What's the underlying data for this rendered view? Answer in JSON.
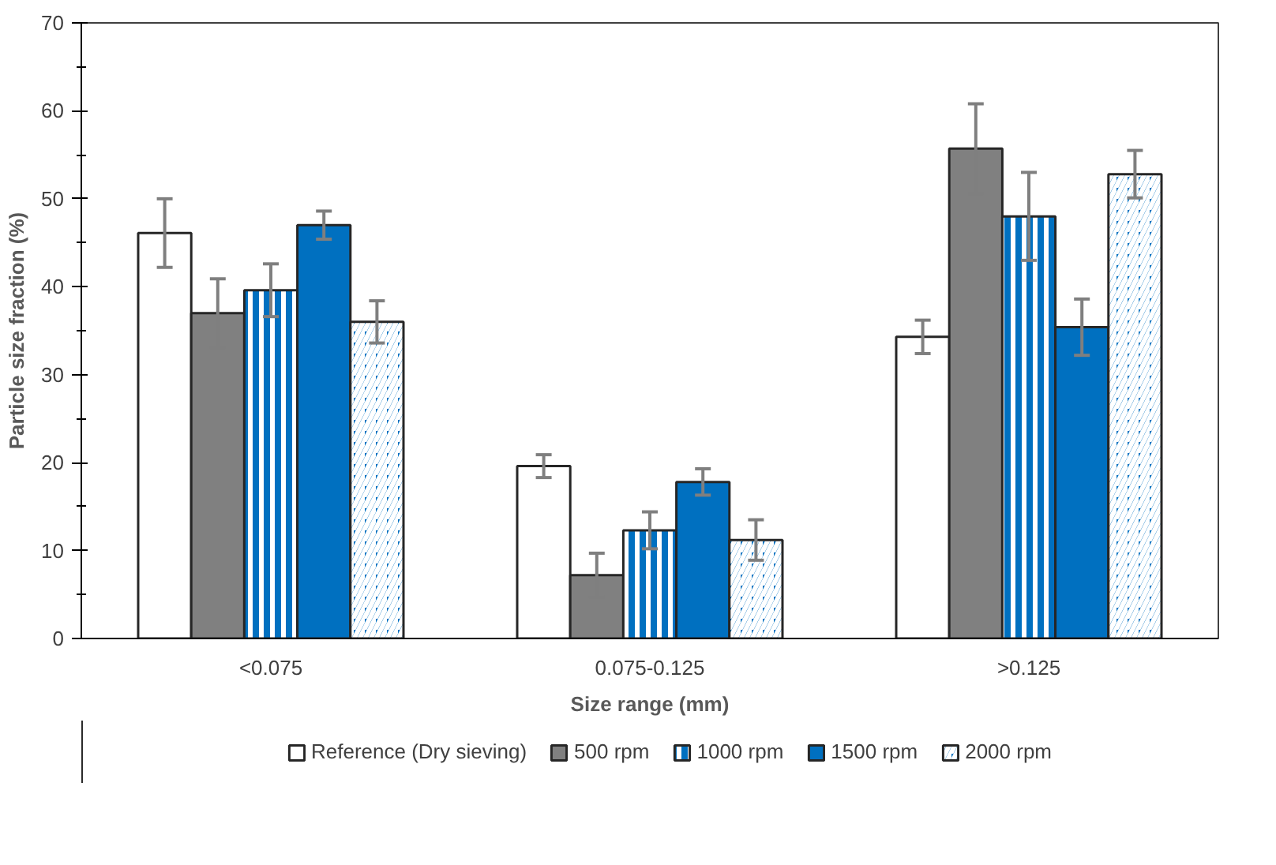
{
  "chart_data": {
    "type": "bar",
    "xlabel": "Size range (mm)",
    "ylabel": "Particle size fraction (%)",
    "categories": [
      "<0.075",
      "0.075-0.125",
      ">0.125"
    ],
    "series": [
      {
        "name": "Reference (Dry sieving)",
        "color": "#ffffff",
        "values": [
          46.1,
          19.6,
          34.3
        ],
        "errors": [
          3.9,
          1.3,
          1.9
        ]
      },
      {
        "name": "500 rpm",
        "color": "#808080",
        "values": [
          37.0,
          7.2,
          55.7
        ],
        "errors": [
          3.9,
          2.5,
          5.1
        ]
      },
      {
        "name": "1000 rpm",
        "color": "#0070c0",
        "values": [
          39.6,
          12.3,
          48.0
        ],
        "errors": [
          3.0,
          2.1,
          5.0
        ]
      },
      {
        "name": "1500 rpm",
        "color": "#0070c0",
        "values": [
          47.0,
          17.8,
          35.4
        ],
        "errors": [
          1.6,
          1.5,
          3.2
        ]
      },
      {
        "name": "2000 rpm",
        "color": "#0070c0",
        "values": [
          36.0,
          11.2,
          52.8
        ],
        "errors": [
          2.4,
          2.3,
          2.7
        ]
      }
    ],
    "ylim": [
      0,
      70
    ],
    "yticks": [
      0,
      10,
      20,
      30,
      40,
      50,
      60,
      70
    ],
    "grid": false,
    "legend": "bottom"
  }
}
